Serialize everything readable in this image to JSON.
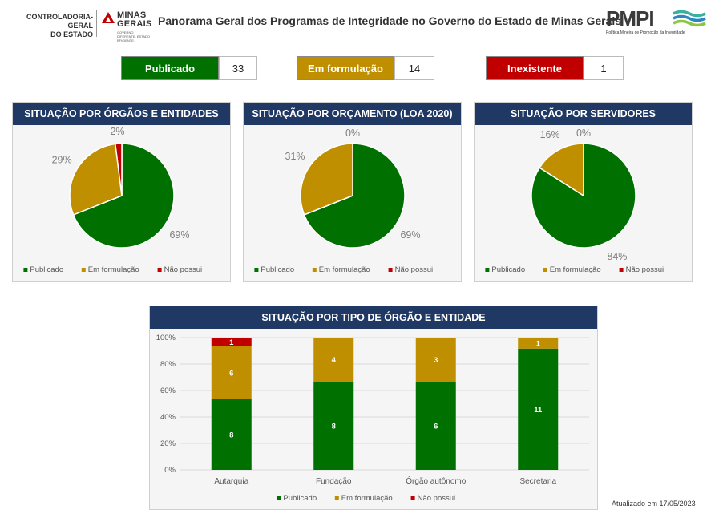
{
  "header": {
    "org_line1": "CONTROLADORIA-GERAL",
    "org_line2": "DO ESTADO",
    "state_name_line1": "MINAS",
    "state_name_line2": "GERAIS",
    "state_tagline": "GOVERNO DIFERENTE. ESTADO EFICIENTE.",
    "title": "Panorama Geral dos Programas de Integridade no Governo do Estado de Minas Gerais",
    "program_logo": "PMPI",
    "program_subtitle": "Política Mineira de Promoção da Integridade"
  },
  "summary": [
    {
      "label": "Publicado",
      "value": "33",
      "color": "#007000"
    },
    {
      "label": "Em formulação",
      "value": "14",
      "color": "#bf8f00"
    },
    {
      "label": "Inexistente",
      "value": "1",
      "color": "#c00000"
    }
  ],
  "colors": {
    "publicado": "#007000",
    "formulacao": "#bf8f00",
    "nao_possui": "#c00000",
    "panel_header": "#1f3864"
  },
  "chart_data": [
    {
      "type": "pie",
      "title": "SITUAÇÃO POR ÓRGÃOS E ENTIDADES",
      "categories": [
        "Publicado",
        "Em formulação",
        "Não possui"
      ],
      "values": [
        69,
        29,
        2
      ],
      "labels": [
        "69%",
        "29%",
        "2%"
      ],
      "legend": "bottom"
    },
    {
      "type": "pie",
      "title": "SITUAÇÃO POR ORÇAMENTO (LOA 2020)",
      "categories": [
        "Publicado",
        "Em formulação",
        "Não possui"
      ],
      "values": [
        69,
        31,
        0
      ],
      "labels": [
        "69%",
        "31%",
        "0%"
      ],
      "legend": "bottom"
    },
    {
      "type": "pie",
      "title": "SITUAÇÃO POR SERVIDORES",
      "categories": [
        "Publicado",
        "Em formulação",
        "Não possui"
      ],
      "values": [
        84,
        16,
        0
      ],
      "labels": [
        "84%",
        "16%",
        "0%"
      ],
      "legend": "bottom"
    },
    {
      "type": "bar",
      "stacked": "percent",
      "title": "SITUAÇÃO POR TIPO DE ÓRGÃO E ENTIDADE",
      "categories": [
        "Autarquia",
        "Fundação",
        "Órgão autônomo",
        "Secretaria"
      ],
      "series": [
        {
          "name": "Publicado",
          "values": [
            8,
            8,
            6,
            11
          ]
        },
        {
          "name": "Em formulação",
          "values": [
            6,
            4,
            3,
            1
          ]
        },
        {
          "name": "Não possui",
          "values": [
            1,
            0,
            0,
            0
          ]
        }
      ],
      "yticks": [
        "0%",
        "20%",
        "40%",
        "60%",
        "80%",
        "100%"
      ],
      "ylim": [
        0,
        100
      ],
      "grid": true,
      "legend": "bottom"
    }
  ],
  "footer": {
    "updated": "Atualizado em 17/05/2023"
  }
}
